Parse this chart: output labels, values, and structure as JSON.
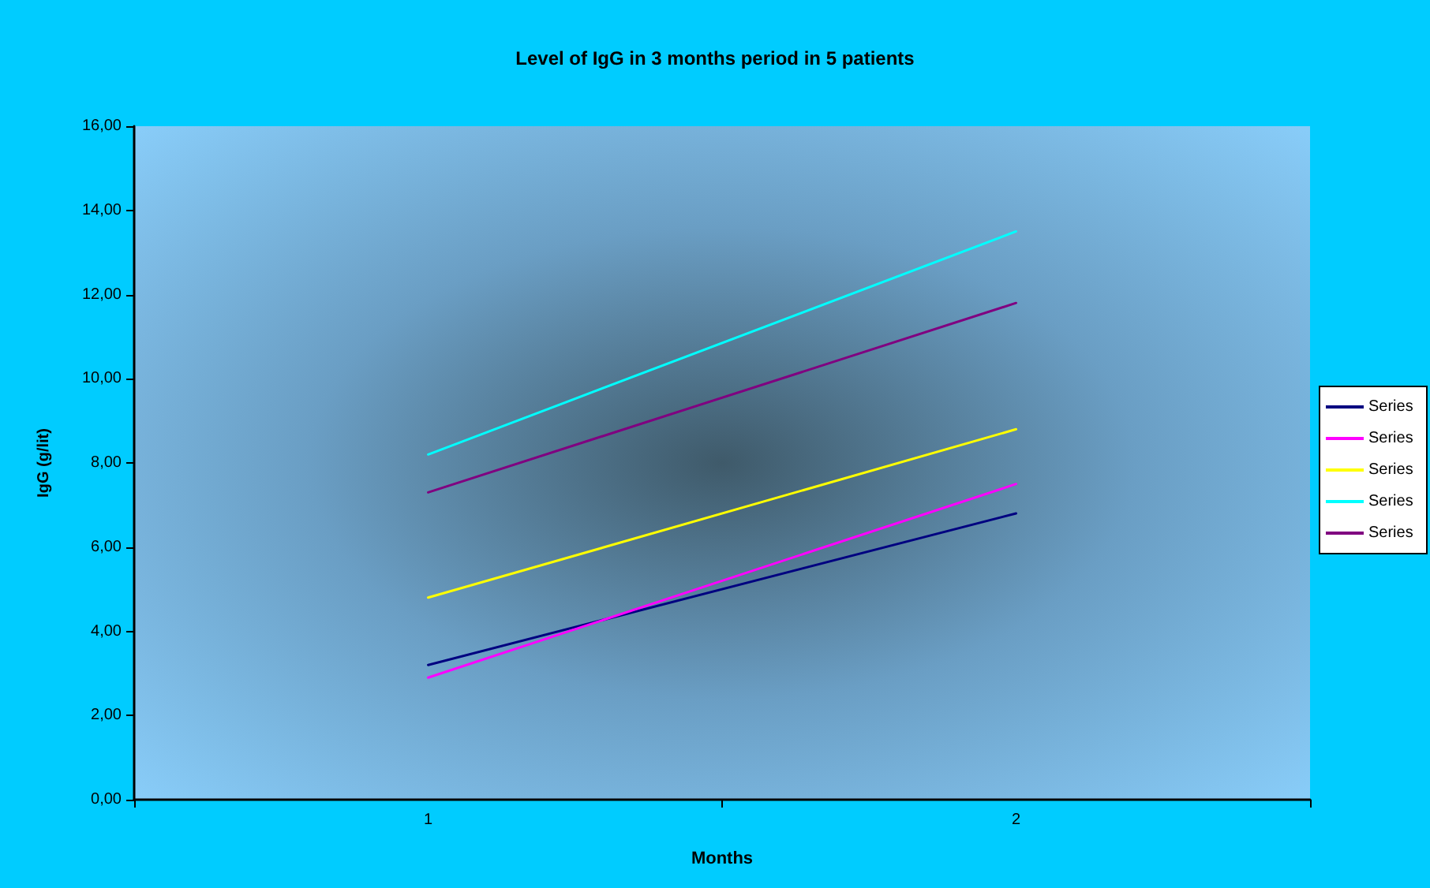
{
  "chart_data": {
    "type": "line",
    "title": "Level of IgG in 3 months period in 5 patients",
    "xlabel": "Months",
    "ylabel": "IgG (g/lit)",
    "categories": [
      "1",
      "2"
    ],
    "series": [
      {
        "name": "Series",
        "color": "#000080",
        "values": [
          3.2,
          6.8
        ]
      },
      {
        "name": "Series",
        "color": "#ff00ff",
        "values": [
          2.9,
          7.5
        ]
      },
      {
        "name": "Series",
        "color": "#ffff00",
        "values": [
          4.8,
          8.8
        ]
      },
      {
        "name": "Series",
        "color": "#00ffff",
        "values": [
          8.2,
          13.5
        ]
      },
      {
        "name": "Series",
        "color": "#800080",
        "values": [
          7.3,
          11.8
        ]
      }
    ],
    "ylim": [
      0,
      16
    ],
    "yticks": [
      {
        "value": 0,
        "label": "0,00"
      },
      {
        "value": 2,
        "label": "2,00"
      },
      {
        "value": 4,
        "label": "4,00"
      },
      {
        "value": 6,
        "label": "6,00"
      },
      {
        "value": 8,
        "label": "8,00"
      },
      {
        "value": 10,
        "label": "10,00"
      },
      {
        "value": 12,
        "label": "12,00"
      },
      {
        "value": 14,
        "label": "14,00"
      },
      {
        "value": 16,
        "label": "16,00"
      }
    ],
    "grid": false,
    "legend": "right",
    "marker": "none",
    "line_style": "solid"
  }
}
